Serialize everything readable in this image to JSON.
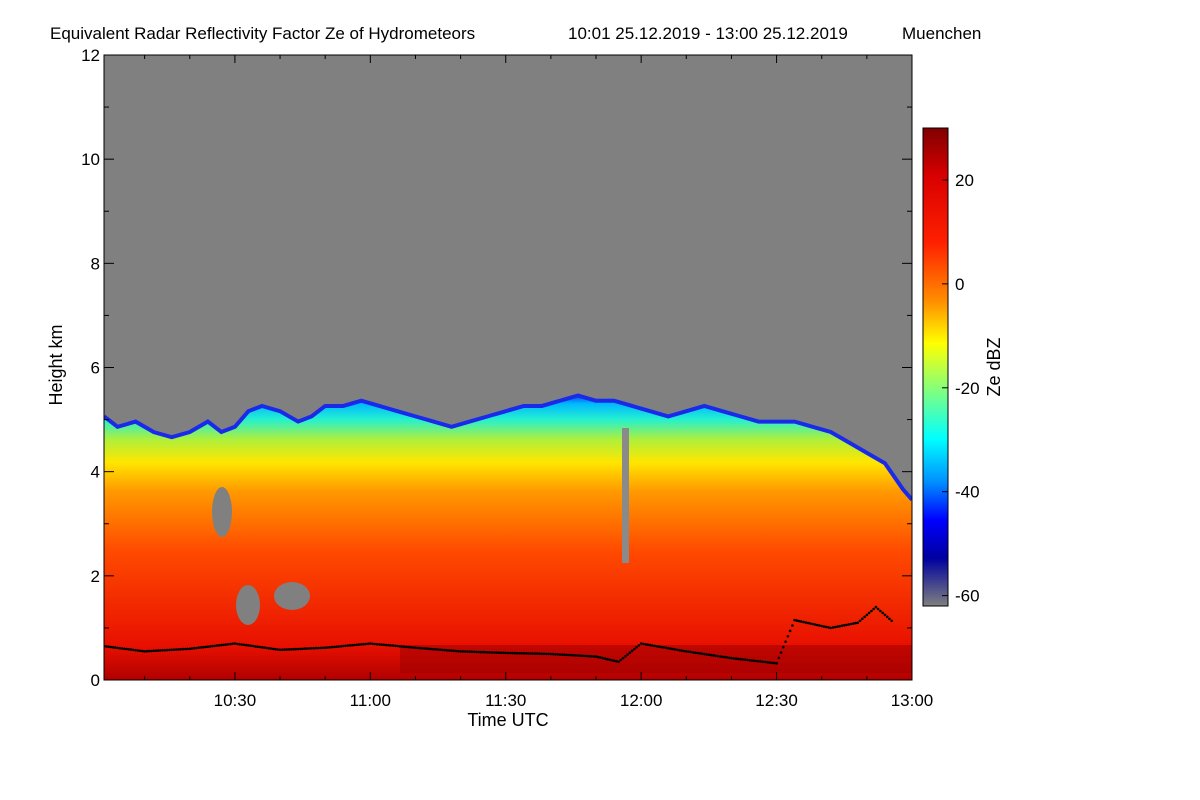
{
  "chart_data": {
    "type": "heatmap",
    "title": "Equivalent Radar Reflectivity Factor Ze of Hydrometeors",
    "time_range": "10:01 25.12.2019 - 13:00 25.12.2019",
    "location": "Muenchen",
    "xlabel": "Time UTC",
    "ylabel": "Height km",
    "x_ticks": [
      "10:30",
      "11:00",
      "11:30",
      "12:00",
      "12:30",
      "13:00"
    ],
    "x_tick_minutes": [
      30,
      60,
      90,
      120,
      150,
      180
    ],
    "xlim_minutes": [
      1,
      180
    ],
    "y_ticks": [
      0,
      2,
      4,
      6,
      8,
      10,
      12
    ],
    "ylim": [
      0,
      12
    ],
    "colorbar": {
      "label": "Ze dBZ",
      "ticks": [
        20,
        0,
        -20,
        -40,
        -60
      ],
      "range": [
        -62,
        30
      ]
    },
    "background_color": "#808080",
    "echo_top_km": [
      [
        1,
        5.1
      ],
      [
        4,
        4.9
      ],
      [
        8,
        5.0
      ],
      [
        12,
        4.8
      ],
      [
        16,
        4.7
      ],
      [
        20,
        4.8
      ],
      [
        24,
        5.0
      ],
      [
        27,
        4.8
      ],
      [
        30,
        4.9
      ],
      [
        33,
        5.2
      ],
      [
        36,
        5.3
      ],
      [
        40,
        5.2
      ],
      [
        44,
        5.0
      ],
      [
        47,
        5.1
      ],
      [
        50,
        5.3
      ],
      [
        54,
        5.3
      ],
      [
        58,
        5.4
      ],
      [
        62,
        5.3
      ],
      [
        66,
        5.2
      ],
      [
        70,
        5.1
      ],
      [
        74,
        5.0
      ],
      [
        78,
        4.9
      ],
      [
        82,
        5.0
      ],
      [
        86,
        5.1
      ],
      [
        90,
        5.2
      ],
      [
        94,
        5.3
      ],
      [
        98,
        5.3
      ],
      [
        102,
        5.4
      ],
      [
        106,
        5.5
      ],
      [
        110,
        5.4
      ],
      [
        114,
        5.4
      ],
      [
        118,
        5.3
      ],
      [
        122,
        5.2
      ],
      [
        126,
        5.1
      ],
      [
        130,
        5.2
      ],
      [
        134,
        5.3
      ],
      [
        138,
        5.2
      ],
      [
        142,
        5.1
      ],
      [
        146,
        5.0
      ],
      [
        150,
        5.0
      ],
      [
        154,
        5.0
      ],
      [
        158,
        4.9
      ],
      [
        162,
        4.8
      ],
      [
        166,
        4.6
      ],
      [
        170,
        4.4
      ],
      [
        174,
        4.2
      ],
      [
        178,
        3.7
      ],
      [
        180,
        3.5
      ]
    ],
    "cloud_base_km": [
      [
        1,
        0.65
      ],
      [
        10,
        0.55
      ],
      [
        20,
        0.6
      ],
      [
        30,
        0.7
      ],
      [
        40,
        0.58
      ],
      [
        50,
        0.62
      ],
      [
        60,
        0.7
      ],
      [
        70,
        0.62
      ],
      [
        80,
        0.55
      ],
      [
        90,
        0.52
      ],
      [
        100,
        0.5
      ],
      [
        110,
        0.45
      ],
      [
        115,
        0.35
      ],
      [
        120,
        0.7
      ],
      [
        130,
        0.55
      ],
      [
        140,
        0.42
      ],
      [
        150,
        0.32
      ],
      [
        154,
        1.15
      ],
      [
        162,
        1.0
      ],
      [
        168,
        1.1
      ],
      [
        172,
        1.4
      ],
      [
        176,
        1.1
      ]
    ]
  }
}
